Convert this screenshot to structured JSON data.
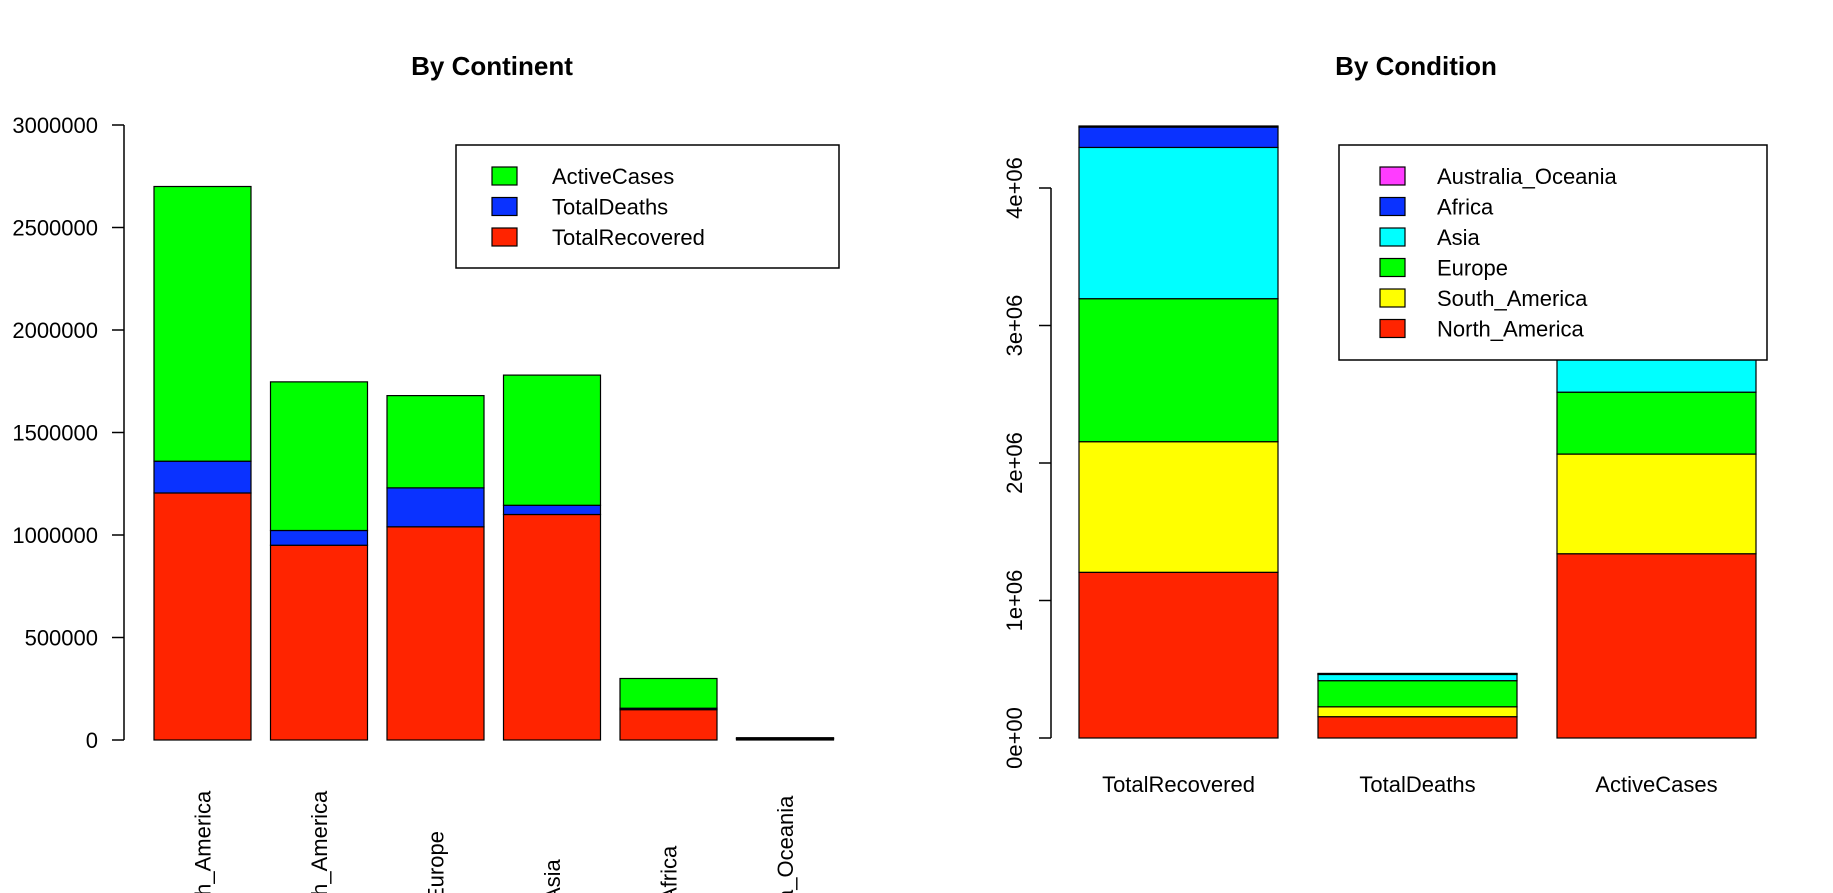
{
  "charts": [
    {
      "id": "continent",
      "chart_data": {
        "type": "bar",
        "stacked": true,
        "title": "By Continent",
        "categories": [
          "North_America",
          "South_America",
          "Europe",
          "Asia",
          "Africa",
          "Australia_Oceania"
        ],
        "category_tick_labels": [
          "th_America",
          "th_America",
          "Europe",
          "Asia",
          "Africa",
          "a_Oceania"
        ],
        "series": [
          {
            "name": "TotalRecovered",
            "color": "#ff2400",
            "values": [
              1205000,
              950000,
              1040000,
              1100000,
              148000,
              8000
            ]
          },
          {
            "name": "TotalDeaths",
            "color": "#0a32ff",
            "values": [
              155000,
              72000,
              190000,
              45000,
              7000,
              200
            ]
          },
          {
            "name": "ActiveCases",
            "color": "#00ff00",
            "values": [
              1340000,
              725000,
              450000,
              635000,
              145000,
              3000
            ]
          }
        ],
        "ylim": [
          0,
          3000000
        ],
        "yticks": [
          0,
          500000,
          1000000,
          1500000,
          2000000,
          2500000,
          3000000
        ],
        "ytick_labels": [
          "0",
          "500000",
          "1000000",
          "1500000",
          "2000000",
          "2500000",
          "3000000"
        ],
        "legend": {
          "position": "top-right",
          "items": [
            "ActiveCases",
            "TotalDeaths",
            "TotalRecovered"
          ]
        },
        "grid": false
      }
    },
    {
      "id": "condition",
      "chart_data": {
        "type": "bar",
        "stacked": true,
        "title": "By Condition",
        "categories": [
          "TotalRecovered",
          "TotalDeaths",
          "ActiveCases"
        ],
        "category_tick_labels": [
          "TotalRecovered",
          "TotalDeaths",
          "ActiveCases"
        ],
        "series": [
          {
            "name": "North_America",
            "color": "#ff2400",
            "values": [
              1205000,
              155000,
              1340000
            ]
          },
          {
            "name": "South_America",
            "color": "#ffff00",
            "values": [
              950000,
              72000,
              725000
            ]
          },
          {
            "name": "Europe",
            "color": "#00ff00",
            "values": [
              1040000,
              190000,
              450000
            ]
          },
          {
            "name": "Asia",
            "color": "#00ffff",
            "values": [
              1100000,
              45000,
              635000
            ]
          },
          {
            "name": "Africa",
            "color": "#0a32ff",
            "values": [
              148000,
              7000,
              145000
            ]
          },
          {
            "name": "Australia_Oceania",
            "color": "#ff3cff",
            "values": [
              8000,
              200,
              3000
            ]
          }
        ],
        "ylim": [
          0,
          4460000
        ],
        "yticks": [
          0,
          1000000,
          2000000,
          3000000,
          4000000
        ],
        "ytick_labels": [
          "0e+00",
          "1e+06",
          "2e+06",
          "3e+06",
          "4e+06"
        ],
        "legend": {
          "position": "top-right",
          "items": [
            "Australia_Oceania",
            "Africa",
            "Asia",
            "Europe",
            "South_America",
            "North_America"
          ]
        },
        "grid": false
      }
    }
  ]
}
